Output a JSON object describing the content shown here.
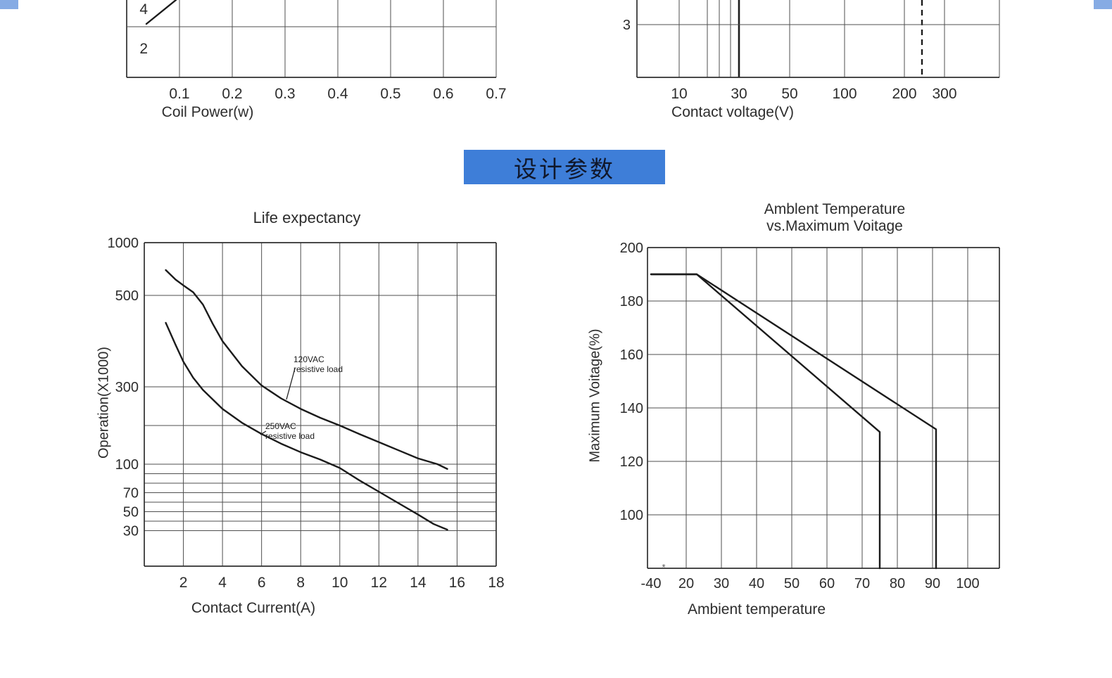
{
  "page": {
    "background": "#ffffff",
    "corner_decoration_color": "#86abe4",
    "banner": {
      "text": "设计参数",
      "bg_color": "#3e7ed8",
      "text_color": "#10172a"
    }
  },
  "chart_data": [
    {
      "id": "coil-power-partial",
      "type": "line",
      "title": "",
      "xlabel": "Coil Power(w)",
      "x_tick_labels": [
        "0.1",
        "0.2",
        "0.3",
        "0.4",
        "0.5",
        "0.6",
        "0.7"
      ],
      "y_tick_labels": [
        "4",
        "2"
      ],
      "xlim": [
        0,
        0.7
      ],
      "note": "top of chart cropped off; only lower grid rows and a small rising curve fragment are visible at upper left"
    },
    {
      "id": "contact-voltage-partial",
      "type": "line",
      "title": "",
      "xlabel": "Contact voltage(V)",
      "x_tick_labels": [
        "10",
        "30",
        "50",
        "100",
        "200",
        "300"
      ],
      "y_tick_labels": [
        "3"
      ],
      "xscale": "log",
      "solid_vertical_line_x": 30,
      "dashed_vertical_line_x": 250,
      "note": "top of chart cropped off; heavy solid vertical line at 30 V, dashed vertical line near 250 V"
    },
    {
      "id": "life-expectancy",
      "type": "line",
      "title": "Life expectancy",
      "xlabel": "Contact Current(A)",
      "ylabel": "Operation(X1000)",
      "x_ticks": [
        2,
        4,
        6,
        8,
        10,
        12,
        14,
        16,
        18
      ],
      "y_ticks": [
        1000,
        500,
        300,
        100,
        70,
        50,
        30
      ],
      "xlim": [
        0,
        18
      ],
      "yscale": "log-like",
      "grid": true,
      "series": [
        {
          "name": "120VAC resistive load",
          "label_line1": "120VAC",
          "label_line2": "resistive load",
          "points": [
            [
              1.1,
              740
            ],
            [
              1.6,
              650
            ],
            [
              2,
              595
            ],
            [
              2.5,
              530
            ],
            [
              3,
              480
            ],
            [
              3.5,
              438
            ],
            [
              4,
              400
            ],
            [
              5,
              345
            ],
            [
              6,
              303
            ],
            [
              7,
              270
            ],
            [
              8,
              243
            ],
            [
              9,
              220
            ],
            [
              10,
              200
            ],
            [
              11,
              178
            ],
            [
              12,
              157
            ],
            [
              13,
              136
            ],
            [
              14,
              115
            ],
            [
              15,
              100
            ],
            [
              15.5,
              95
            ]
          ]
        },
        {
          "name": "250VAC resistive load",
          "label_line1": "250VAC",
          "label_line2": "resistive load",
          "points": [
            [
              1.1,
              440
            ],
            [
              1.6,
              392
            ],
            [
              2,
              355
            ],
            [
              2.5,
              320
            ],
            [
              3,
              292
            ],
            [
              4,
              243
            ],
            [
              5,
              207
            ],
            [
              6,
              178
            ],
            [
              7,
              153
            ],
            [
              8,
              131
            ],
            [
              9,
              112
            ],
            [
              10,
              96
            ],
            [
              11,
              83
            ],
            [
              12,
              71
            ],
            [
              13,
              59
            ],
            [
              14,
              47
            ],
            [
              14.8,
              37
            ],
            [
              15.5,
              31
            ]
          ]
        }
      ]
    },
    {
      "id": "ambient-temperature-vs-max-voltage",
      "type": "line",
      "title_line1": "Amblent Temperature",
      "title_line2": "vs.Maximum Voitage",
      "xlabel": "Ambient temperature",
      "ylabel": "Maximum Voitage(%)",
      "x_ticks": [
        -40,
        20,
        30,
        40,
        50,
        60,
        70,
        80,
        90,
        100
      ],
      "x_tick_labels": [
        "-40",
        "20",
        "30",
        "40",
        "50",
        "60",
        "70",
        "80",
        "90",
        "100"
      ],
      "y_ticks": [
        200,
        180,
        160,
        140,
        120,
        100
      ],
      "ylim": [
        80,
        200
      ],
      "grid": true,
      "series": [
        {
          "name": "upper derating line (vertical drop near 91)",
          "points": [
            [
              -40,
              190
            ],
            [
              23,
              190
            ],
            [
              91,
              132
            ],
            [
              91,
              80
            ]
          ]
        },
        {
          "name": "lower derating line (vertical drop near 75)",
          "points": [
            [
              -40,
              190
            ],
            [
              23,
              190
            ],
            [
              75,
              131
            ],
            [
              75,
              80
            ]
          ]
        }
      ]
    }
  ]
}
